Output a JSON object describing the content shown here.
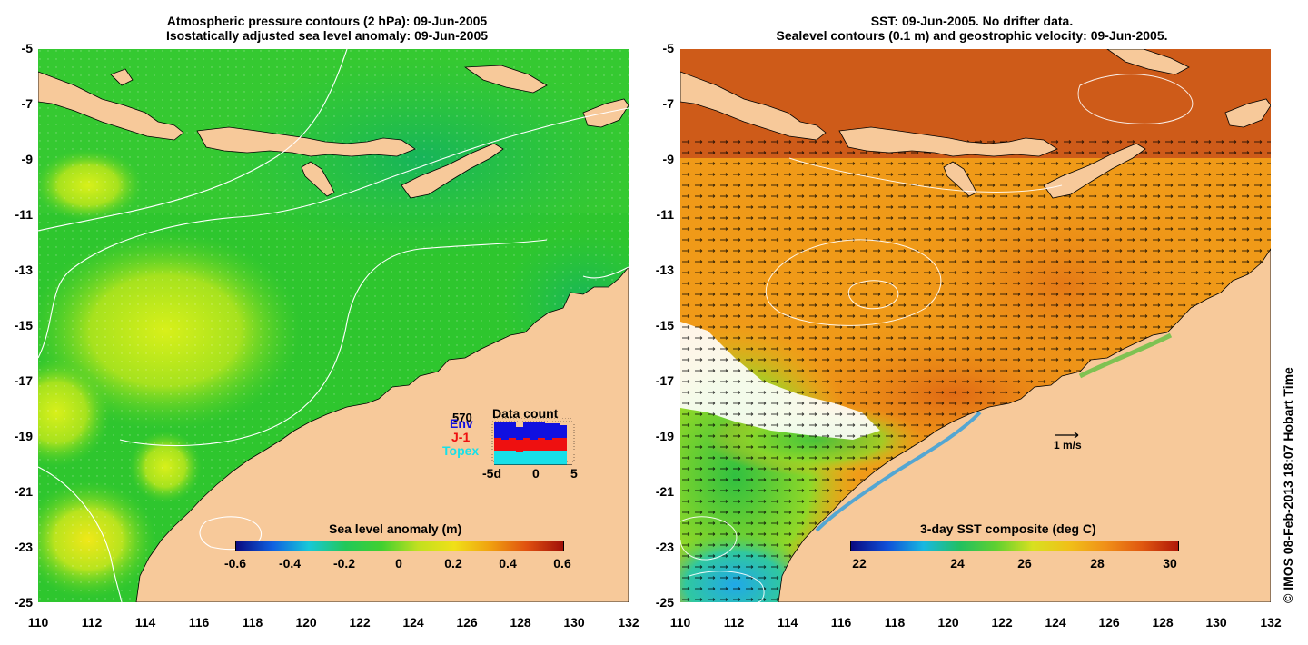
{
  "left_panel": {
    "title_line1": "Atmospheric pressure contours (2 hPa): 09-Jun-2005",
    "title_line2": "Isostatically adjusted sea level anomaly: 09-Jun-2005",
    "colorbar": {
      "title": "Sea level anomaly (m)",
      "ticks": [
        "-0.6",
        "-0.4",
        "-0.2",
        "0",
        "0.2",
        "0.4",
        "0.6"
      ],
      "range": [
        -0.6,
        0.6
      ]
    },
    "data_count": {
      "title": "Data count",
      "max_label": "570",
      "series": [
        "Env",
        "J-1",
        "Topex"
      ],
      "series_colors": [
        "#1010e0",
        "#ee1010",
        "#18e0e8"
      ],
      "x_ticks": [
        "-5d",
        "0",
        "5"
      ]
    }
  },
  "right_panel": {
    "title_line1": "SST: 09-Jun-2005. No drifter data.",
    "title_line2": "Sealevel contours (0.1 m) and geostrophic velocity: 09-Jun-2005.",
    "colorbar": {
      "title": "3-day SST composite (deg C)",
      "ticks": [
        "22",
        "24",
        "26",
        "28",
        "30"
      ],
      "range": [
        20.6,
        31.2
      ]
    },
    "velocity_scale_label": "1 m/s"
  },
  "axes": {
    "lon_ticks": [
      "110",
      "112",
      "114",
      "116",
      "118",
      "120",
      "122",
      "124",
      "126",
      "128",
      "130",
      "132"
    ],
    "lat_ticks": [
      "-5",
      "-7",
      "-9",
      "-11",
      "-13",
      "-15",
      "-17",
      "-19",
      "-21",
      "-23",
      "-25"
    ],
    "lon_range": [
      110,
      132
    ],
    "lat_range": [
      -25,
      -5
    ]
  },
  "credit": "© IMOS 08-Feb-2013 18:07 Hobart Time",
  "colors": {
    "land": "#f7c99a",
    "sla_base": "#2ec82e",
    "sst_base": "#f09a18",
    "contour": "#ffffff"
  }
}
